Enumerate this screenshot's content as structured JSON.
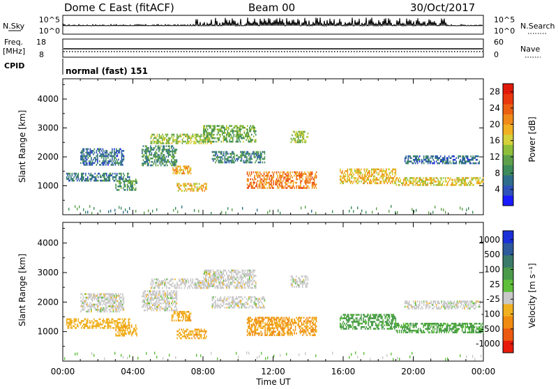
{
  "header": {
    "station": "Dome C East (fitACF)",
    "beam": "Beam 00",
    "date": "30/Oct/2017"
  },
  "strips": {
    "nsky_label": "N.Sky",
    "nsky_ticks": [
      "10^5",
      "10^0"
    ],
    "nsearch_label": "N.Search",
    "nsearch_ticks": [
      "10^5",
      "10^0"
    ],
    "freq_label_1": "Freq.",
    "freq_label_2": "[MHz]",
    "freq_ticks": [
      "18",
      "8"
    ],
    "nave_label": "Nave",
    "nave_ticks": [
      "60",
      "0"
    ],
    "cpid_label": "CPID",
    "cpid_text": "normal (fast) 151"
  },
  "chart_data": [
    {
      "type": "heatmap",
      "title": "",
      "ylabel": "Slant Range [km]",
      "xlabel": "Time UT",
      "x_ticks": [
        "00:00",
        "04:00",
        "08:00",
        "12:00",
        "16:00",
        "20:00",
        "00:00"
      ],
      "y_ticks": [
        "1000",
        "2000",
        "3000",
        "4000"
      ],
      "ylim": [
        0,
        4700
      ],
      "xlim_hours": [
        0,
        24
      ],
      "colorbar": {
        "label": "Power [dB]",
        "ticks": [
          "4",
          "8",
          "12",
          "16",
          "20",
          "24",
          "28"
        ],
        "range": [
          0,
          30
        ],
        "colors": [
          "#1a1aff",
          "#2f52b8",
          "#2e6e8a",
          "#3d8a5a",
          "#5ea04a",
          "#8fbf3a",
          "#d4d23a",
          "#f0b022",
          "#f08a1a",
          "#ec6012",
          "#e8380c",
          "#e01a08"
        ]
      },
      "regions": [
        {
          "t": [
            0.2,
            3.8
          ],
          "r": [
            1150,
            1450
          ],
          "v": 7
        },
        {
          "t": [
            1.0,
            3.5
          ],
          "r": [
            1700,
            2300
          ],
          "v": 6
        },
        {
          "t": [
            3.0,
            4.2
          ],
          "r": [
            850,
            1250
          ],
          "v": 10
        },
        {
          "t": [
            4.5,
            6.5
          ],
          "r": [
            1700,
            2400
          ],
          "v": 9
        },
        {
          "t": [
            5.0,
            8.5
          ],
          "r": [
            2450,
            2800
          ],
          "v": 14
        },
        {
          "t": [
            6.5,
            8.2
          ],
          "r": [
            800,
            1100
          ],
          "v": 18
        },
        {
          "t": [
            6.2,
            7.3
          ],
          "r": [
            1400,
            1700
          ],
          "v": 20
        },
        {
          "t": [
            8.0,
            11.0
          ],
          "r": [
            2500,
            3100
          ],
          "v": 12
        },
        {
          "t": [
            8.5,
            11.5
          ],
          "r": [
            1800,
            2200
          ],
          "v": 8
        },
        {
          "t": [
            10.5,
            14.5
          ],
          "r": [
            900,
            1500
          ],
          "v": 22
        },
        {
          "t": [
            13.0,
            14.0
          ],
          "r": [
            2500,
            2900
          ],
          "v": 14
        },
        {
          "t": [
            15.8,
            19.0
          ],
          "r": [
            1100,
            1600
          ],
          "v": 18
        },
        {
          "t": [
            19.0,
            24.0
          ],
          "r": [
            1000,
            1300
          ],
          "v": 17
        },
        {
          "t": [
            19.5,
            23.8
          ],
          "r": [
            1800,
            2050
          ],
          "v": 6
        }
      ]
    },
    {
      "type": "heatmap",
      "title": "",
      "ylabel": "Slant Range [km]",
      "xlabel": "Time UT",
      "x_ticks": [
        "00:00",
        "04:00",
        "08:00",
        "12:00",
        "16:00",
        "20:00",
        "00:00"
      ],
      "y_ticks": [
        "1000",
        "2000",
        "3000",
        "4000"
      ],
      "ylim": [
        0,
        4700
      ],
      "xlim_hours": [
        0,
        24
      ],
      "colorbar": {
        "label": "Velocity [m s⁻¹]",
        "ticks": [
          "1000",
          "500",
          "100",
          "25",
          "-25",
          "-100",
          "-500",
          "-1000"
        ],
        "colors": [
          "#1a2fd8",
          "#2c5a9a",
          "#3a7a6a",
          "#4a9a4a",
          "#5ebf3a",
          "#c8c8c8",
          "#f0b020",
          "#f08a10",
          "#ec5a10",
          "#e81a0a"
        ]
      },
      "regions": [
        {
          "t": [
            0.2,
            3.8
          ],
          "r": [
            1150,
            1450
          ],
          "v": -60
        },
        {
          "t": [
            1.0,
            3.5
          ],
          "r": [
            1700,
            2300
          ],
          "v": 0
        },
        {
          "t": [
            3.0,
            4.2
          ],
          "r": [
            850,
            1250
          ],
          "v": -80
        },
        {
          "t": [
            4.5,
            6.5
          ],
          "r": [
            1700,
            2400
          ],
          "v": 0
        },
        {
          "t": [
            5.0,
            8.5
          ],
          "r": [
            2450,
            2800
          ],
          "v": 0
        },
        {
          "t": [
            6.5,
            8.2
          ],
          "r": [
            800,
            1100
          ],
          "v": -90
        },
        {
          "t": [
            6.2,
            7.3
          ],
          "r": [
            1400,
            1700
          ],
          "v": -80
        },
        {
          "t": [
            8.0,
            11.0
          ],
          "r": [
            2500,
            3100
          ],
          "v": 0
        },
        {
          "t": [
            8.5,
            11.5
          ],
          "r": [
            1800,
            2200
          ],
          "v": 0
        },
        {
          "t": [
            10.5,
            14.5
          ],
          "r": [
            900,
            1500
          ],
          "v": -100
        },
        {
          "t": [
            13.0,
            14.0
          ],
          "r": [
            2500,
            2900
          ],
          "v": 0
        },
        {
          "t": [
            15.8,
            19.0
          ],
          "r": [
            1100,
            1600
          ],
          "v": 120
        },
        {
          "t": [
            19.0,
            24.0
          ],
          "r": [
            1000,
            1300
          ],
          "v": 110
        },
        {
          "t": [
            19.5,
            23.8
          ],
          "r": [
            1800,
            2050
          ],
          "v": 0
        }
      ]
    }
  ]
}
